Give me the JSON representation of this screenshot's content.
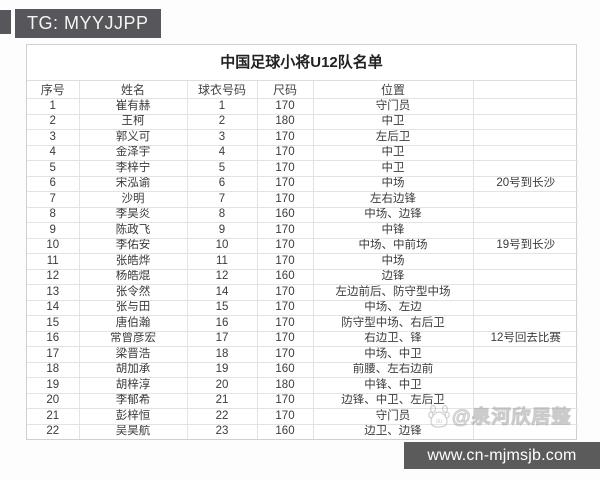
{
  "badge": {
    "label": "TG: MYYJJPP"
  },
  "table": {
    "title": "中国足球小将U12队名单",
    "headers": [
      "序号",
      "姓名",
      "球衣号码",
      "尺码",
      "位置",
      ""
    ],
    "rows": [
      {
        "no": "1",
        "name": "崔有赫",
        "jersey": "1",
        "size": "170",
        "position": "守门员",
        "note": "",
        "red": false
      },
      {
        "no": "2",
        "name": "王柯",
        "jersey": "2",
        "size": "180",
        "position": "中卫",
        "note": "",
        "red": false
      },
      {
        "no": "3",
        "name": "郭义可",
        "jersey": "3",
        "size": "170",
        "position": "左后卫",
        "note": "",
        "red": true
      },
      {
        "no": "4",
        "name": "金泽宇",
        "jersey": "4",
        "size": "170",
        "position": "中卫",
        "note": "",
        "red": false
      },
      {
        "no": "5",
        "name": "李梓宁",
        "jersey": "5",
        "size": "170",
        "position": "中卫",
        "note": "",
        "red": false
      },
      {
        "no": "6",
        "name": "宋泓谕",
        "jersey": "6",
        "size": "170",
        "position": "中场",
        "note": "20号到长沙",
        "red": false
      },
      {
        "no": "7",
        "name": "沙明",
        "jersey": "7",
        "size": "170",
        "position": "左右边锋",
        "note": "",
        "red": false
      },
      {
        "no": "8",
        "name": "李昊炎",
        "jersey": "8",
        "size": "160",
        "position": "中场、边锋",
        "note": "",
        "red": false
      },
      {
        "no": "9",
        "name": "陈政飞",
        "jersey": "9",
        "size": "170",
        "position": "中锋",
        "note": "",
        "red": true
      },
      {
        "no": "10",
        "name": "李佑安",
        "jersey": "10",
        "size": "170",
        "position": "中场、中前场",
        "note": "19号到长沙",
        "red": true
      },
      {
        "no": "11",
        "name": "张皓烨",
        "jersey": "11",
        "size": "170",
        "position": "中场",
        "note": "",
        "red": false
      },
      {
        "no": "12",
        "name": "杨皓焜",
        "jersey": "12",
        "size": "160",
        "position": "边锋",
        "note": "",
        "red": false
      },
      {
        "no": "13",
        "name": "张令然",
        "jersey": "14",
        "size": "170",
        "position": "左边前后、防守型中场",
        "note": "",
        "red": false
      },
      {
        "no": "14",
        "name": "张与田",
        "jersey": "15",
        "size": "170",
        "position": "中场、左边",
        "note": "",
        "red": false
      },
      {
        "no": "15",
        "name": "唐伯瀚",
        "jersey": "16",
        "size": "170",
        "position": "防守型中场、右后卫",
        "note": "",
        "red": false
      },
      {
        "no": "16",
        "name": "常曾彦宏",
        "jersey": "17",
        "size": "170",
        "position": "右边卫、锋",
        "note": "12号回去比赛",
        "red": true
      },
      {
        "no": "17",
        "name": "梁晋浩",
        "jersey": "18",
        "size": "170",
        "position": "中场、中卫",
        "note": "",
        "red": false
      },
      {
        "no": "18",
        "name": "胡加承",
        "jersey": "19",
        "size": "160",
        "position": "前腰、左右边前",
        "note": "",
        "red": false
      },
      {
        "no": "19",
        "name": "胡梓淳",
        "jersey": "20",
        "size": "180",
        "position": "中锋、中卫",
        "note": "",
        "red": true
      },
      {
        "no": "20",
        "name": "李郁希",
        "jersey": "21",
        "size": "170",
        "position": "边锋、中卫、左后卫",
        "note": "",
        "red": false
      },
      {
        "no": "21",
        "name": "彭梓恒",
        "jersey": "22",
        "size": "170",
        "position": "守门员",
        "note": "",
        "red": false
      },
      {
        "no": "22",
        "name": "吴昊航",
        "jersey": "23",
        "size": "160",
        "position": "边卫、边锋",
        "note": "",
        "red": false
      }
    ]
  },
  "watermark": {
    "icon": "baidu-paw-icon",
    "text": "@泉河欣居整"
  },
  "footer": {
    "url": "www.cn-mjmsjb.com"
  },
  "colors": {
    "badge_bg": "#57575b",
    "footer_bg": "#5b5b5b",
    "red_name": "#9c564e"
  }
}
